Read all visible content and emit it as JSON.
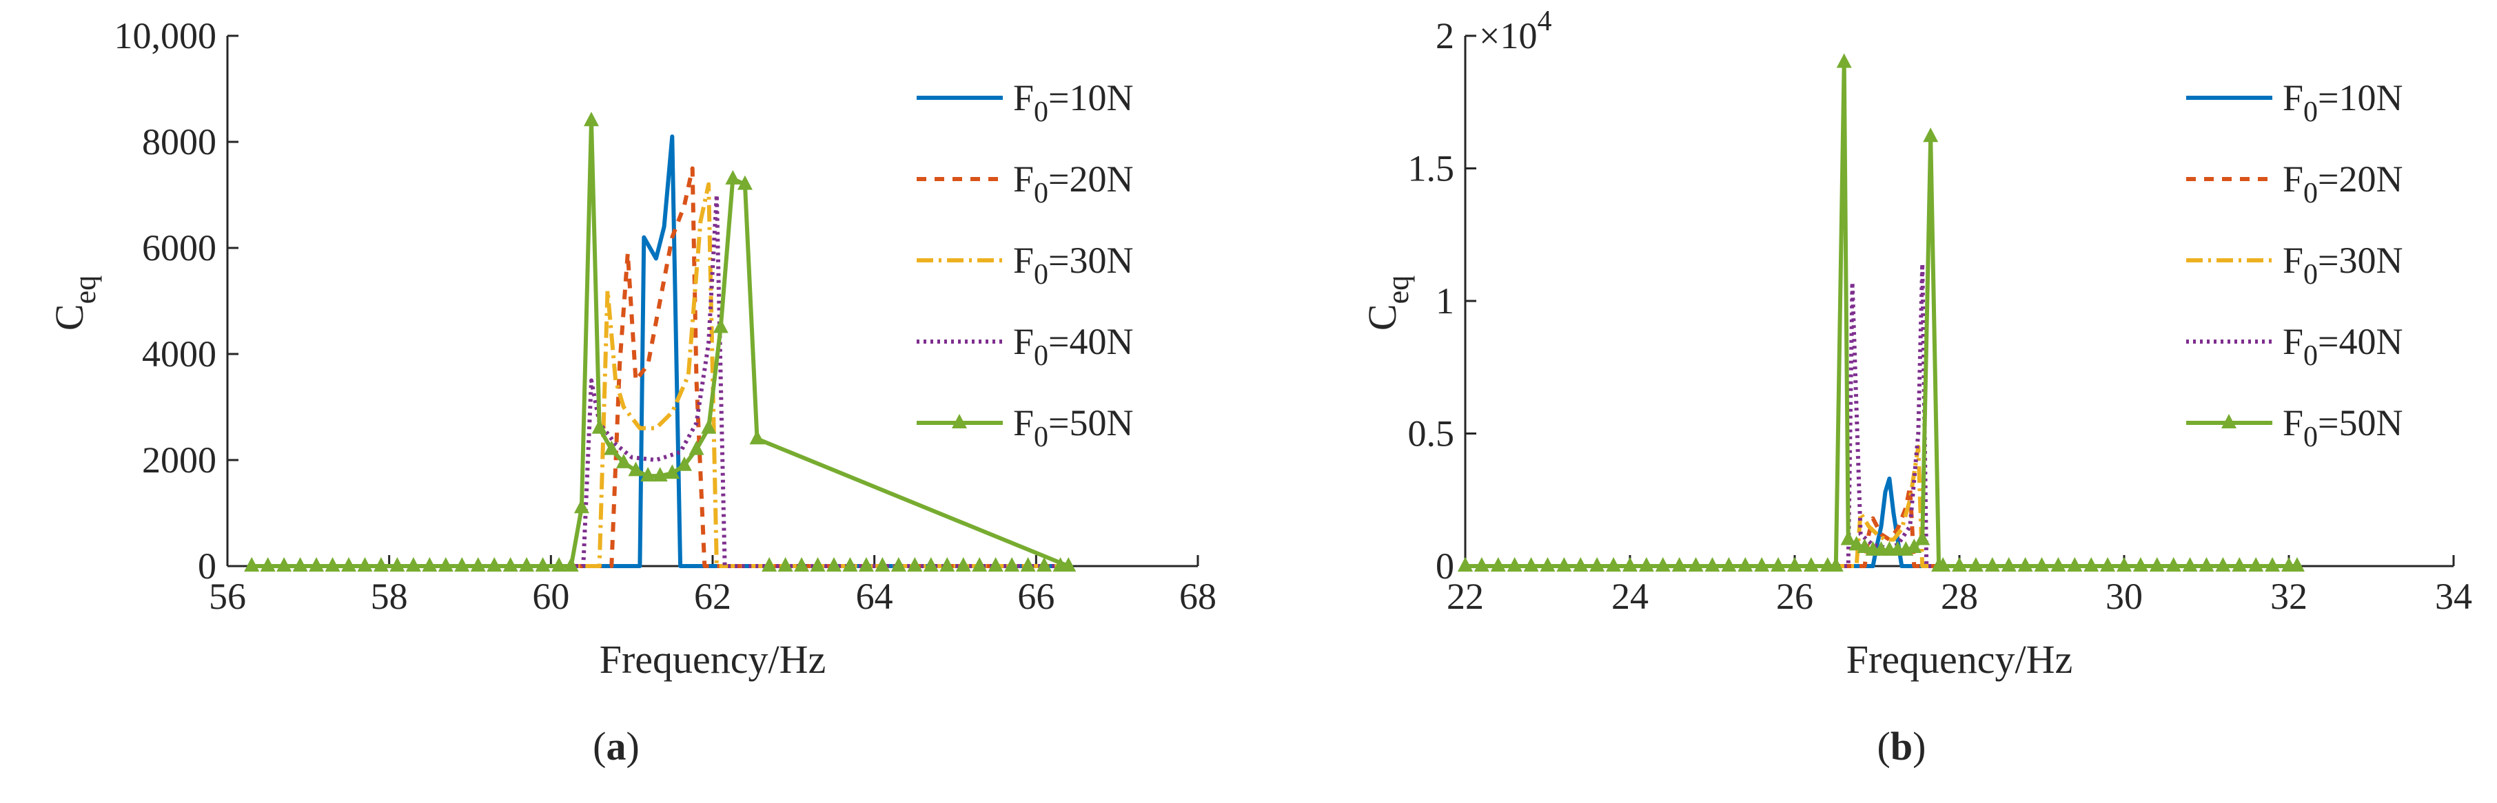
{
  "chart_data": [
    {
      "type": "line",
      "panel_label": "a",
      "xlabel": "Frequency/Hz",
      "ylabel": "C",
      "ylabel_sub": "eq",
      "xlim": [
        56,
        68
      ],
      "ylim": [
        0,
        10000
      ],
      "xticks": [
        "56",
        "58",
        "60",
        "62",
        "64",
        "66",
        "68"
      ],
      "yticks": [
        "0",
        "2000",
        "4000",
        "6000",
        "8000",
        "10,000"
      ],
      "ytick_values": [
        0,
        2000,
        4000,
        6000,
        8000,
        10000
      ],
      "xtick_values": [
        56,
        58,
        60,
        62,
        64,
        66,
        68
      ],
      "series": [
        {
          "name": "F0=10N",
          "name_main": "F",
          "name_sub": "0",
          "name_rest": "=10N",
          "color": "#0072BD",
          "dash": "",
          "marker": "none",
          "x": [
            56.3,
            60.9,
            61.0,
            61.1,
            61.15,
            61.3,
            61.4,
            61.5,
            61.6,
            62.0,
            66.4
          ],
          "y": [
            0,
            0,
            0,
            0,
            6200,
            5800,
            6400,
            8100,
            0,
            0,
            0
          ]
        },
        {
          "name": "F0=20N",
          "name_main": "F",
          "name_sub": "0",
          "name_rest": "=20N",
          "color": "#D95319",
          "dash": "14,12",
          "marker": "none",
          "x": [
            56.3,
            60.75,
            60.85,
            60.95,
            61.05,
            61.2,
            61.35,
            61.5,
            61.65,
            61.75,
            61.8,
            61.9,
            66.4
          ],
          "y": [
            0,
            0,
            3800,
            5900,
            3500,
            3800,
            5000,
            6200,
            6800,
            7500,
            3500,
            0,
            0
          ]
        },
        {
          "name": "F0=30N",
          "name_main": "F",
          "name_sub": "0",
          "name_rest": "=30N",
          "color": "#EDB120",
          "dash": "24,8,4,8",
          "marker": "none",
          "x": [
            56.3,
            60.6,
            60.7,
            60.8,
            60.9,
            61.1,
            61.3,
            61.5,
            61.7,
            61.85,
            61.95,
            62.05,
            66.4
          ],
          "y": [
            0,
            0,
            5200,
            3500,
            3000,
            2600,
            2600,
            2900,
            3600,
            6500,
            7200,
            0,
            0
          ]
        },
        {
          "name": "F0=40N",
          "name_main": "F",
          "name_sub": "0",
          "name_rest": "=40N",
          "color": "#7E2F8E",
          "dash": "4,6",
          "marker": "none",
          "x": [
            56.3,
            60.4,
            60.5,
            60.6,
            60.8,
            61.0,
            61.3,
            61.6,
            61.8,
            61.95,
            62.05,
            62.15,
            66.4
          ],
          "y": [
            0,
            0,
            3500,
            2700,
            2300,
            2050,
            2000,
            2150,
            2700,
            4200,
            7000,
            0,
            0
          ]
        },
        {
          "name": "F0=50N",
          "name_main": "F",
          "name_sub": "0",
          "name_rest": "=50N",
          "color": "#77AC30",
          "dash": "",
          "marker": "triangle",
          "x": [
            56.3,
            60.25,
            60.38,
            60.5,
            60.6,
            60.75,
            60.9,
            61.05,
            61.2,
            61.35,
            61.5,
            61.65,
            61.8,
            61.95,
            62.1,
            62.25,
            62.4,
            62.55,
            66.4
          ],
          "y": [
            0,
            0,
            1100,
            8400,
            2600,
            2200,
            1950,
            1800,
            1700,
            1700,
            1750,
            1900,
            2200,
            2600,
            4500,
            7300,
            7200,
            2400,
            0
          ]
        }
      ]
    },
    {
      "type": "line",
      "panel_label": "b",
      "xlabel": "Frequency/Hz",
      "ylabel": "C",
      "ylabel_sub": "eq",
      "exponent_label": "×10",
      "exponent_power": "4",
      "xlim": [
        22,
        34
      ],
      "ylim": [
        0,
        2
      ],
      "xticks": [
        "22",
        "24",
        "26",
        "28",
        "30",
        "32",
        "34"
      ],
      "yticks": [
        "0",
        "0.5",
        "1",
        "1.5",
        "2"
      ],
      "ytick_values": [
        0,
        0.5,
        1,
        1.5,
        2
      ],
      "xtick_values": [
        22,
        24,
        26,
        28,
        30,
        32,
        34
      ],
      "series": [
        {
          "name": "F0=10N",
          "name_main": "F",
          "name_sub": "0",
          "name_rest": "=10N",
          "color": "#0072BD",
          "dash": "",
          "marker": "none",
          "x": [
            22,
            26.95,
            27.0,
            27.05,
            27.1,
            27.15,
            27.2,
            27.3,
            27.4,
            32.1
          ],
          "y": [
            0,
            0,
            0.08,
            0.15,
            0.28,
            0.33,
            0.2,
            0,
            0,
            0
          ]
        },
        {
          "name": "F0=20N",
          "name_main": "F",
          "name_sub": "0",
          "name_rest": "=20N",
          "color": "#D95319",
          "dash": "14,12",
          "marker": "none",
          "x": [
            22,
            26.85,
            26.9,
            26.95,
            27.05,
            27.15,
            27.25,
            27.35,
            27.4,
            27.45,
            32.1
          ],
          "y": [
            0,
            0,
            0.12,
            0.18,
            0.12,
            0.1,
            0.14,
            0.22,
            0.3,
            0,
            0
          ]
        },
        {
          "name": "F0=30N",
          "name_main": "F",
          "name_sub": "0",
          "name_rest": "=30N",
          "color": "#EDB120",
          "dash": "24,8,4,8",
          "marker": "none",
          "x": [
            22,
            26.75,
            26.8,
            26.9,
            27.0,
            27.1,
            27.2,
            27.3,
            27.4,
            27.5,
            27.55,
            32.1
          ],
          "y": [
            0,
            0,
            0.2,
            0.15,
            0.12,
            0.1,
            0.1,
            0.14,
            0.25,
            0.45,
            0,
            0
          ]
        },
        {
          "name": "F0=40N",
          "name_main": "F",
          "name_sub": "0",
          "name_rest": "=40N",
          "color": "#7E2F8E",
          "dash": "4,6",
          "marker": "none",
          "x": [
            22,
            26.65,
            26.7,
            26.8,
            26.95,
            27.1,
            27.25,
            27.4,
            27.5,
            27.55,
            27.6,
            32.1
          ],
          "y": [
            0,
            0,
            1.07,
            0.12,
            0.08,
            0.07,
            0.08,
            0.15,
            0.5,
            1.14,
            0,
            0
          ]
        },
        {
          "name": "F0=50N",
          "name_main": "F",
          "name_sub": "0",
          "name_rest": "=50N",
          "color": "#77AC30",
          "dash": "",
          "marker": "triangle",
          "x": [
            22,
            26.5,
            26.6,
            26.65,
            26.75,
            26.85,
            26.95,
            27.05,
            27.15,
            27.25,
            27.35,
            27.45,
            27.55,
            27.65,
            27.75,
            32.1
          ],
          "y": [
            0,
            0,
            1.9,
            0.1,
            0.08,
            0.07,
            0.06,
            0.06,
            0.06,
            0.06,
            0.06,
            0.07,
            0.1,
            1.62,
            0,
            0
          ]
        }
      ]
    }
  ]
}
